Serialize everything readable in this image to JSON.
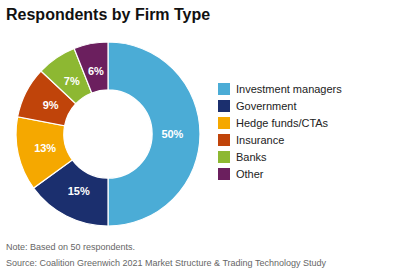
{
  "chart_data": {
    "type": "pie",
    "title": "Respondents by Firm Type",
    "categories": [
      "Investment managers",
      "Government",
      "Hedge funds/CTAs",
      "Insurance",
      "Banks",
      "Other"
    ],
    "values": [
      50,
      15,
      13,
      9,
      7,
      6
    ],
    "value_labels": [
      "50%",
      "15%",
      "13%",
      "9%",
      "7%",
      "6%"
    ],
    "data_labels": true,
    "colors": [
      "#4BACD6",
      "#1B2F6E",
      "#F5A800",
      "#C0440A",
      "#8DB832",
      "#6B1F5E"
    ],
    "legend": "right",
    "annotations": [
      "Note: Based on 50 respondents.",
      "Source: Coalition Greenwich 2021 Market Structure & Trading Technology Study"
    ]
  }
}
